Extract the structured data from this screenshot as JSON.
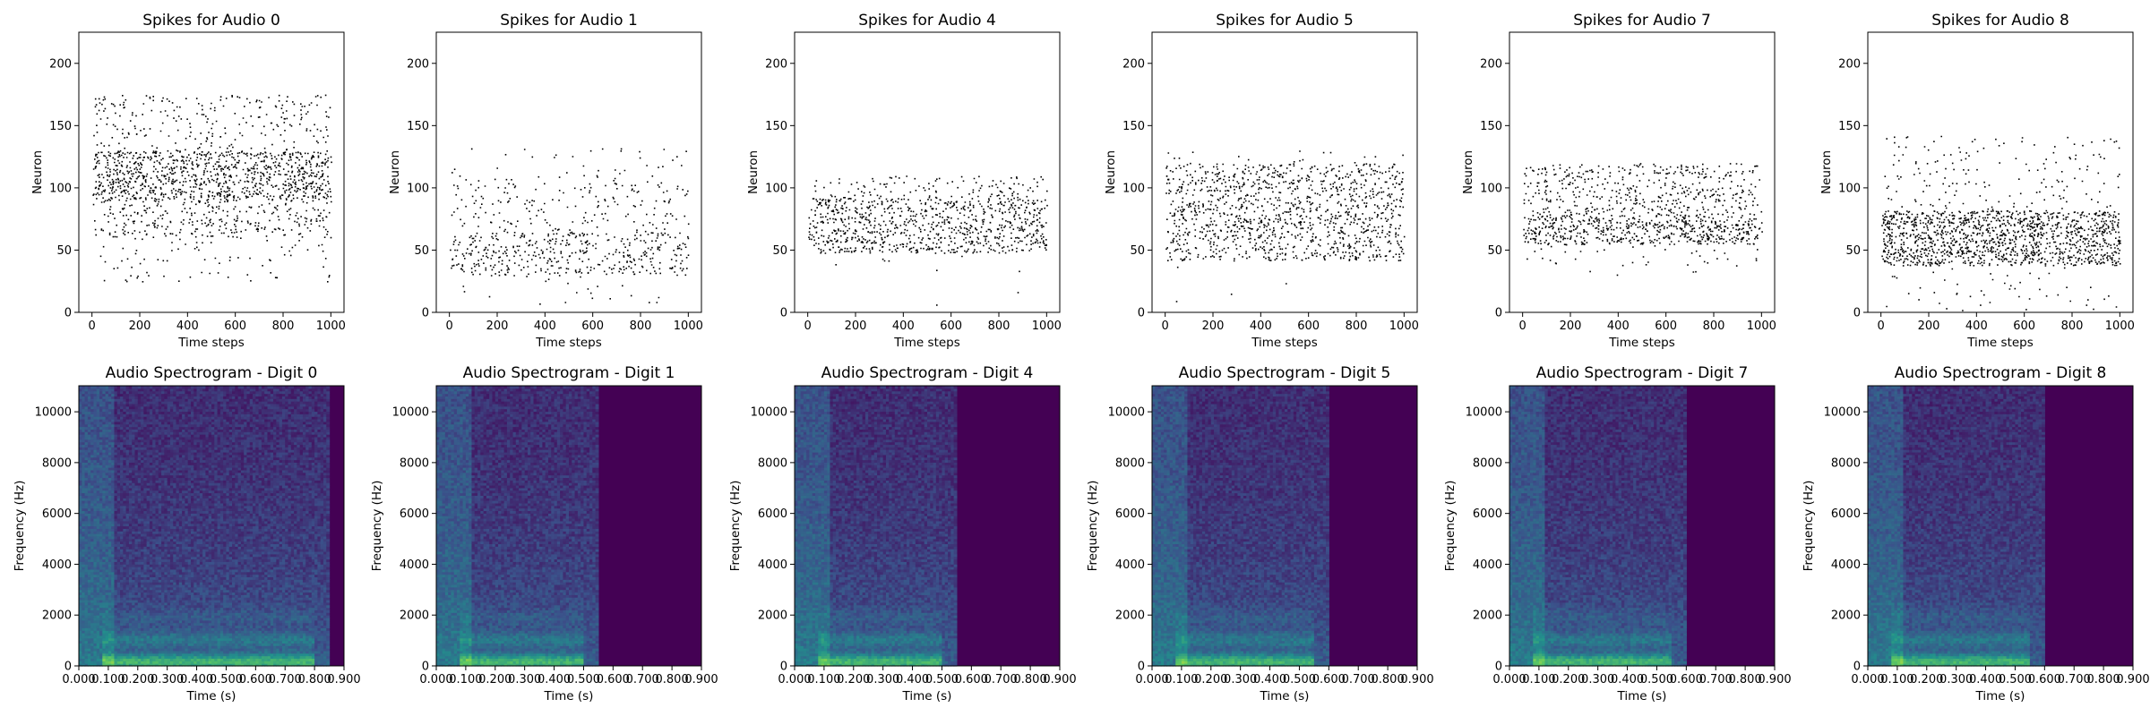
{
  "chart_data": [
    {
      "type": "scatter",
      "kind": "spike-raster",
      "title": "Spikes for Audio 0",
      "xlabel": "Time steps",
      "ylabel": "Neuron",
      "xlim": [
        -55,
        1055
      ],
      "ylim": [
        0,
        225
      ],
      "xticks": [
        0,
        200,
        400,
        600,
        800,
        1000
      ],
      "yticks": [
        0,
        50,
        100,
        150,
        200
      ],
      "bands": [
        {
          "ymin": 90,
          "ymax": 130,
          "density": 0.45
        },
        {
          "ymin": 60,
          "ymax": 90,
          "density": 0.18
        },
        {
          "ymin": 130,
          "ymax": 175,
          "density": 0.1
        },
        {
          "ymin": 25,
          "ymax": 60,
          "density": 0.04
        }
      ]
    },
    {
      "type": "scatter",
      "kind": "spike-raster",
      "title": "Spikes for Audio 1",
      "xlabel": "Time steps",
      "ylabel": "Neuron",
      "xlim": [
        -55,
        1055
      ],
      "ylim": [
        0,
        225
      ],
      "xticks": [
        0,
        200,
        400,
        600,
        800,
        1000
      ],
      "yticks": [
        0,
        50,
        100,
        150,
        200
      ],
      "bands": [
        {
          "ymin": 30,
          "ymax": 65,
          "density": 0.22
        },
        {
          "ymin": 65,
          "ymax": 105,
          "density": 0.08
        },
        {
          "ymin": 105,
          "ymax": 132,
          "density": 0.03
        },
        {
          "ymin": 5,
          "ymax": 30,
          "density": 0.015
        }
      ]
    },
    {
      "type": "scatter",
      "kind": "spike-raster",
      "title": "Spikes for Audio 4",
      "xlabel": "Time steps",
      "ylabel": "Neuron",
      "xlim": [
        -55,
        1055
      ],
      "ylim": [
        0,
        225
      ],
      "xticks": [
        0,
        200,
        400,
        600,
        800,
        1000
      ],
      "yticks": [
        0,
        50,
        100,
        150,
        200
      ],
      "bands": [
        {
          "ymin": 48,
          "ymax": 92,
          "density": 0.35
        },
        {
          "ymin": 92,
          "ymax": 110,
          "density": 0.12
        },
        {
          "ymin": 5,
          "ymax": 48,
          "density": 0.004
        }
      ]
    },
    {
      "type": "scatter",
      "kind": "spike-raster",
      "title": "Spikes for Audio 5",
      "xlabel": "Time steps",
      "ylabel": "Neuron",
      "xlim": [
        -55,
        1055
      ],
      "ylim": [
        0,
        225
      ],
      "xticks": [
        0,
        200,
        400,
        600,
        800,
        1000
      ],
      "yticks": [
        0,
        50,
        100,
        150,
        200
      ],
      "bands": [
        {
          "ymin": 42,
          "ymax": 120,
          "density": 0.28
        },
        {
          "ymin": 120,
          "ymax": 130,
          "density": 0.03
        },
        {
          "ymin": 5,
          "ymax": 42,
          "density": 0.002
        }
      ]
    },
    {
      "type": "scatter",
      "kind": "spike-raster",
      "title": "Spikes for Audio 7",
      "xlabel": "Time steps",
      "ylabel": "Neuron",
      "xlim": [
        -55,
        1055
      ],
      "ylim": [
        0,
        225
      ],
      "xticks": [
        0,
        200,
        400,
        600,
        800,
        1000
      ],
      "yticks": [
        0,
        50,
        100,
        150,
        200
      ],
      "bands": [
        {
          "ymin": 55,
          "ymax": 78,
          "density": 0.45
        },
        {
          "ymin": 78,
          "ymax": 120,
          "density": 0.2
        },
        {
          "ymin": 30,
          "ymax": 55,
          "density": 0.03
        }
      ]
    },
    {
      "type": "scatter",
      "kind": "spike-raster",
      "title": "Spikes for Audio 8",
      "xlabel": "Time steps",
      "ylabel": "Neuron",
      "xlim": [
        -55,
        1055
      ],
      "ylim": [
        0,
        225
      ],
      "xticks": [
        0,
        200,
        400,
        600,
        800,
        1000
      ],
      "yticks": [
        0,
        50,
        100,
        150,
        200
      ],
      "bands": [
        {
          "ymin": 38,
          "ymax": 82,
          "density": 0.55
        },
        {
          "ymin": 82,
          "ymax": 142,
          "density": 0.05
        },
        {
          "ymin": 2,
          "ymax": 38,
          "density": 0.025
        }
      ]
    },
    {
      "type": "heatmap",
      "kind": "spectrogram",
      "title": "Audio Spectrogram - Digit 0",
      "xlabel": "Time (s)",
      "ylabel": "Frequency (Hz)",
      "xlim": [
        0,
        0.9
      ],
      "ylim": [
        0,
        11025
      ],
      "xticks": [
        "0.000",
        "0.100",
        "0.200",
        "0.300",
        "0.400",
        "0.500",
        "0.600",
        "0.700",
        "0.800",
        "0.900"
      ],
      "yticks": [
        0,
        2000,
        4000,
        6000,
        8000,
        10000
      ],
      "duration": 0.85,
      "colormap": [
        "#440154",
        "#3b528b",
        "#21918c",
        "#5ec962",
        "#fde725"
      ]
    },
    {
      "type": "heatmap",
      "kind": "spectrogram",
      "title": "Audio Spectrogram - Digit 1",
      "xlabel": "Time (s)",
      "ylabel": "Frequency (Hz)",
      "xlim": [
        0,
        0.9
      ],
      "ylim": [
        0,
        11025
      ],
      "xticks": [
        "0.000",
        "0.100",
        "0.200",
        "0.300",
        "0.400",
        "0.500",
        "0.600",
        "0.700",
        "0.800",
        "0.900"
      ],
      "yticks": [
        0,
        2000,
        4000,
        6000,
        8000,
        10000
      ],
      "duration": 0.55,
      "colormap": [
        "#440154",
        "#3b528b",
        "#21918c",
        "#5ec962",
        "#fde725"
      ]
    },
    {
      "type": "heatmap",
      "kind": "spectrogram",
      "title": "Audio Spectrogram - Digit 4",
      "xlabel": "Time (s)",
      "ylabel": "Frequency (Hz)",
      "xlim": [
        0,
        0.9
      ],
      "ylim": [
        0,
        11025
      ],
      "xticks": [
        "0.000",
        "0.100",
        "0.200",
        "0.300",
        "0.400",
        "0.500",
        "0.600",
        "0.700",
        "0.800",
        "0.900"
      ],
      "yticks": [
        0,
        2000,
        4000,
        6000,
        8000,
        10000
      ],
      "duration": 0.55,
      "colormap": [
        "#440154",
        "#3b528b",
        "#21918c",
        "#5ec962",
        "#fde725"
      ]
    },
    {
      "type": "heatmap",
      "kind": "spectrogram",
      "title": "Audio Spectrogram - Digit 5",
      "xlabel": "Time (s)",
      "ylabel": "Frequency (Hz)",
      "xlim": [
        0,
        0.9
      ],
      "ylim": [
        0,
        11025
      ],
      "xticks": [
        "0.000",
        "0.100",
        "0.200",
        "0.300",
        "0.400",
        "0.500",
        "0.600",
        "0.700",
        "0.800",
        "0.900"
      ],
      "yticks": [
        0,
        2000,
        4000,
        6000,
        8000,
        10000
      ],
      "duration": 0.6,
      "colormap": [
        "#440154",
        "#3b528b",
        "#21918c",
        "#5ec962",
        "#fde725"
      ]
    },
    {
      "type": "heatmap",
      "kind": "spectrogram",
      "title": "Audio Spectrogram - Digit 7",
      "xlabel": "Time (s)",
      "ylabel": "Frequency (Hz)",
      "xlim": [
        0,
        0.9
      ],
      "ylim": [
        0,
        11025
      ],
      "xticks": [
        "0.000",
        "0.100",
        "0.200",
        "0.300",
        "0.400",
        "0.500",
        "0.600",
        "0.700",
        "0.800",
        "0.900"
      ],
      "yticks": [
        0,
        2000,
        4000,
        6000,
        8000,
        10000
      ],
      "duration": 0.6,
      "colormap": [
        "#440154",
        "#3b528b",
        "#21918c",
        "#5ec962",
        "#fde725"
      ]
    },
    {
      "type": "heatmap",
      "kind": "spectrogram",
      "title": "Audio Spectrogram - Digit 8",
      "xlabel": "Time (s)",
      "ylabel": "Frequency (Hz)",
      "xlim": [
        0,
        0.9
      ],
      "ylim": [
        0,
        11025
      ],
      "xticks": [
        "0.000",
        "0.100",
        "0.200",
        "0.300",
        "0.400",
        "0.500",
        "0.600",
        "0.700",
        "0.800",
        "0.900"
      ],
      "yticks": [
        0,
        2000,
        4000,
        6000,
        8000,
        10000
      ],
      "duration": 0.6,
      "colormap": [
        "#440154",
        "#3b528b",
        "#21918c",
        "#5ec962",
        "#fde725"
      ]
    }
  ]
}
